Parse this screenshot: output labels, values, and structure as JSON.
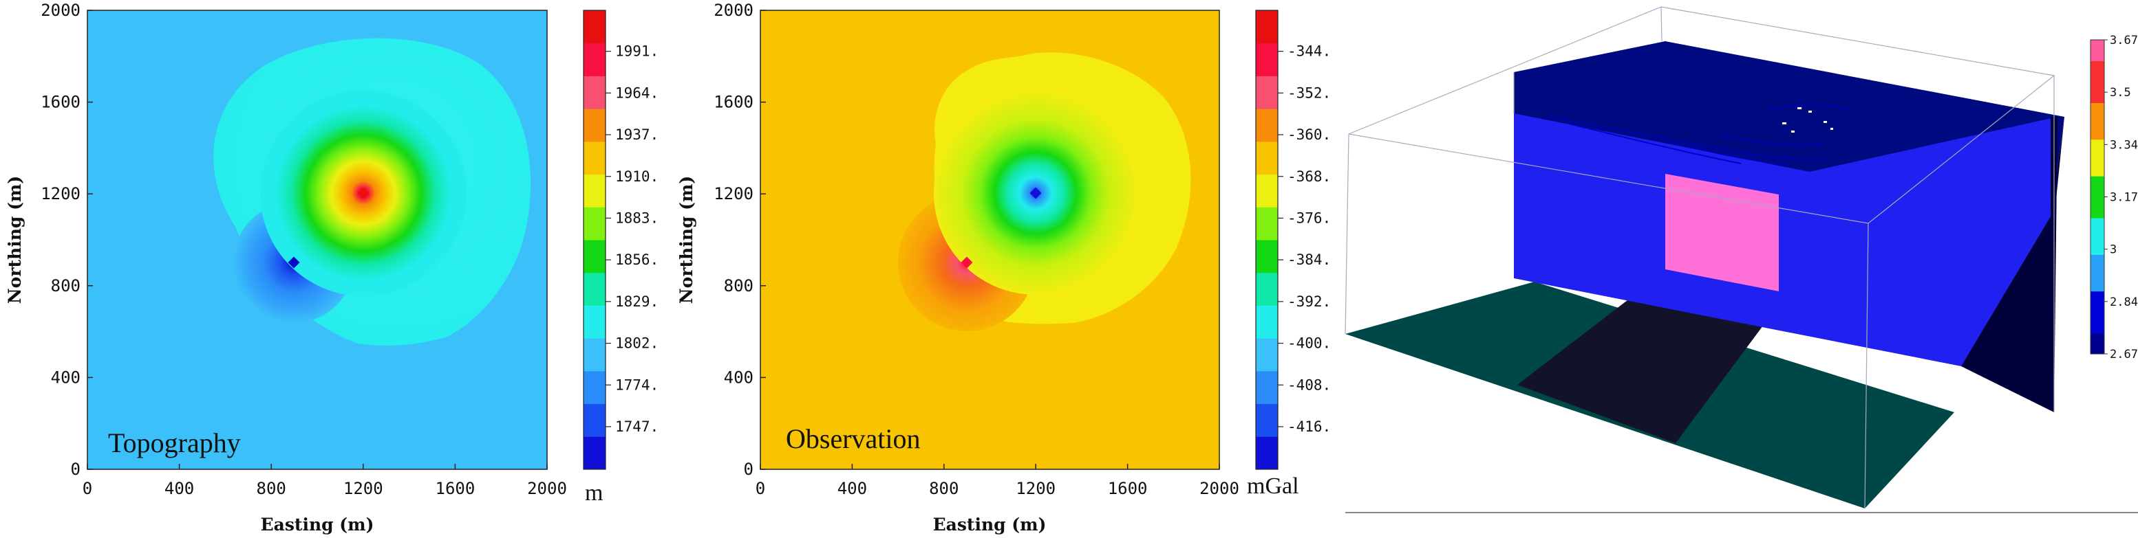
{
  "chart_data": [
    {
      "type": "heatmap",
      "title": "Topography",
      "xlabel": "Easting (m)",
      "ylabel": "Northing (m)",
      "xlim": [
        0,
        2000
      ],
      "ylim": [
        0,
        2000
      ],
      "x_ticks": [
        "0",
        "400",
        "800",
        "1200",
        "1600",
        "2000"
      ],
      "y_ticks": [
        "0",
        "400",
        "800",
        "1200",
        "1600",
        "2000"
      ],
      "colorbar_unit": "m",
      "colorbar_ticks": [
        "1747.",
        "1774.",
        "1802.",
        "1829.",
        "1856.",
        "1883.",
        "1910.",
        "1937.",
        "1964.",
        "1991."
      ],
      "background_value": 1815,
      "features": [
        {
          "kind": "peak",
          "x": 1200,
          "y": 1200,
          "value": 2005,
          "radius": 300
        },
        {
          "kind": "depression",
          "x": 900,
          "y": 900,
          "value": 1740,
          "radius": 200
        }
      ]
    },
    {
      "type": "heatmap",
      "title": "Observation",
      "xlabel": "Easting (m)",
      "ylabel": "Northing (m)",
      "xlim": [
        0,
        2000
      ],
      "ylim": [
        0,
        2000
      ],
      "x_ticks": [
        "0",
        "400",
        "800",
        "1200",
        "1600",
        "2000"
      ],
      "y_ticks": [
        "0",
        "400",
        "800",
        "1200",
        "1600",
        "2000"
      ],
      "colorbar_unit": "mGal",
      "colorbar_ticks": [
        "-416.",
        "-408.",
        "-400.",
        "-392.",
        "-384.",
        "-376.",
        "-368.",
        "-360.",
        "-352.",
        "-344."
      ],
      "background_value": -359,
      "features": [
        {
          "kind": "low",
          "x": 1200,
          "y": 1200,
          "value": -410
        },
        {
          "kind": "high",
          "x": 900,
          "y": 900,
          "value": -340
        }
      ]
    },
    {
      "type": "3d-model",
      "colorbar_ticks": [
        "2.67",
        "2.84",
        "3",
        "3.17",
        "3.34",
        "3.5",
        "3.67"
      ],
      "background_density": 2.67,
      "anomalous_body_density": 3.67
    }
  ],
  "colors": {
    "scale": [
      "#1010d8",
      "#1a4ef0",
      "#2a8cf8",
      "#3cc0fa",
      "#22ecec",
      "#10e8a8",
      "#14d814",
      "#80f010",
      "#ecf010",
      "#f8c400",
      "#f88c08",
      "#f85070",
      "#f81040",
      "#e81010"
    ],
    "model_top": "#000a80",
    "model_front": "#2020f0",
    "model_side": "#00003a",
    "anomaly": "#ff70d8",
    "floor": "#004848",
    "floor_shadow": "#12122a"
  }
}
